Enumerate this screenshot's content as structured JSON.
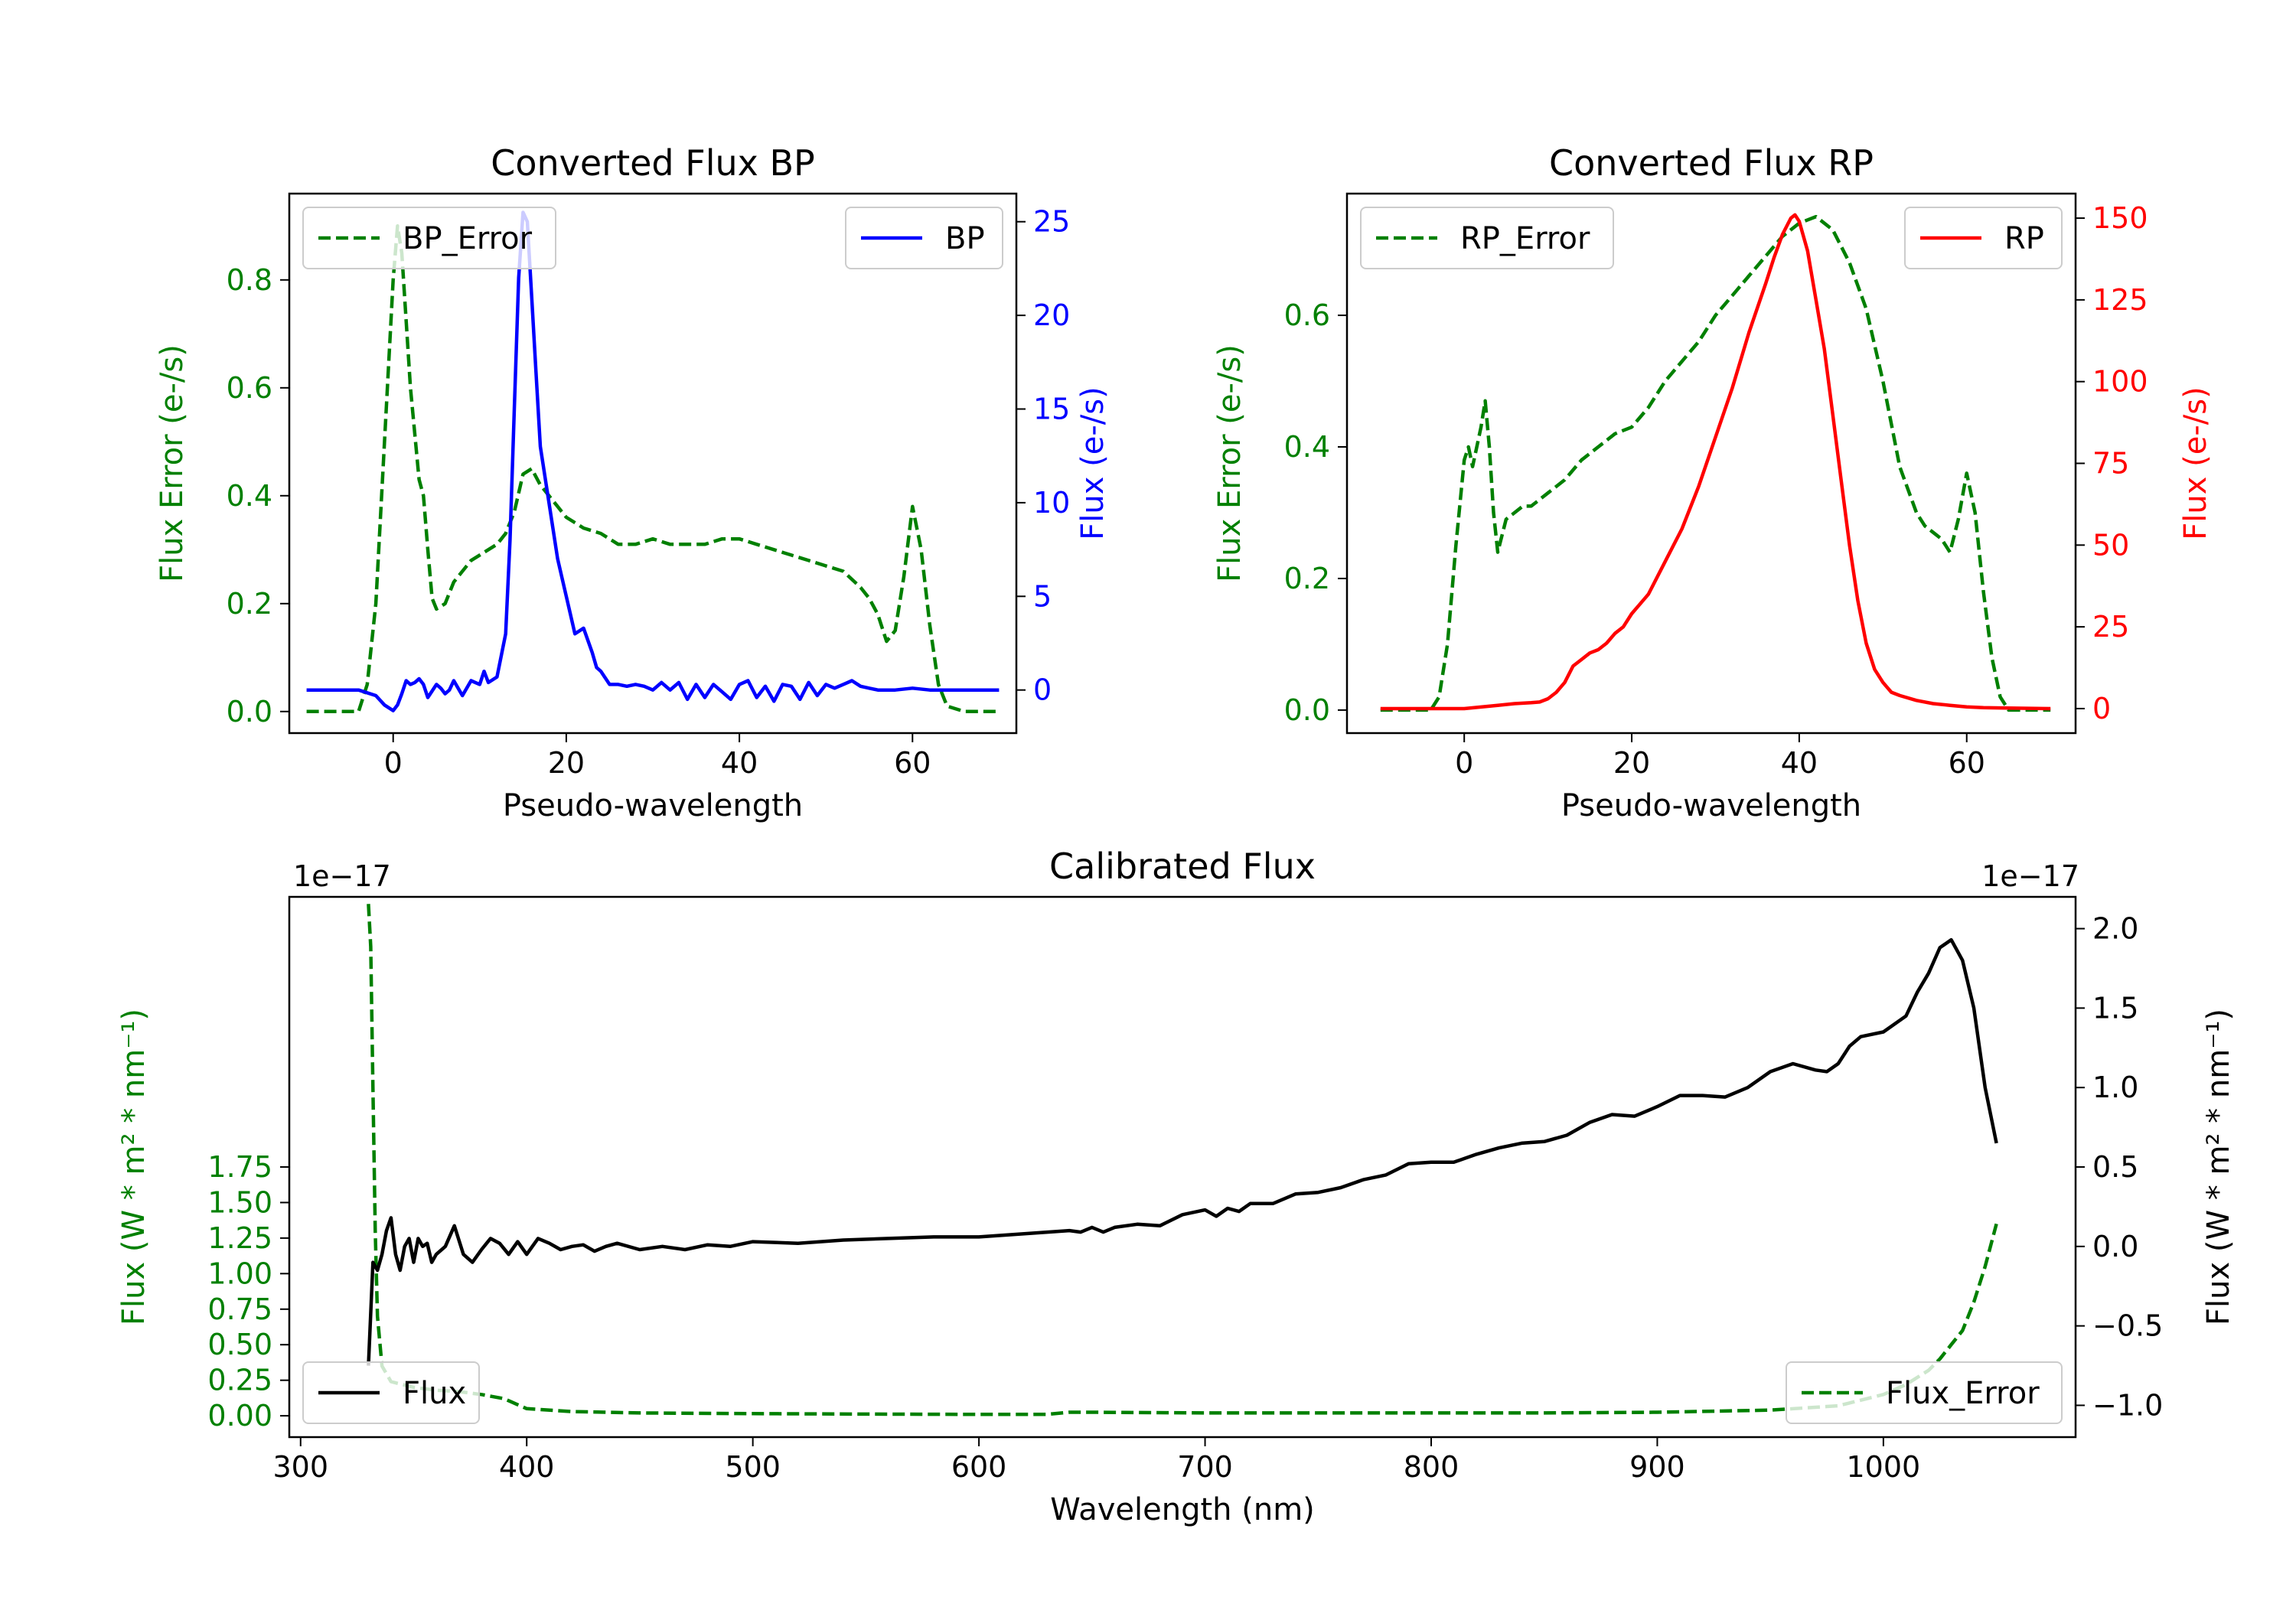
{
  "chart_data": [
    {
      "id": "bp",
      "type": "line",
      "title": "Converted Flux BP",
      "xlabel": "Pseudo-wavelength",
      "xlim": [
        -12,
        72
      ],
      "xticks": [
        0,
        20,
        40,
        60
      ],
      "left_axis": {
        "label": "Flux Error (e-/s)",
        "color": "#008000",
        "ylim": [
          -0.04,
          0.96
        ],
        "ticks": [
          0.0,
          0.2,
          0.4,
          0.6,
          0.8
        ],
        "tick_labels": [
          "0.0",
          "0.2",
          "0.4",
          "0.6",
          "0.8"
        ]
      },
      "right_axis": {
        "label": "Flux (e-/s)",
        "color": "#0000ff",
        "ylim": [
          -2.3,
          26.5
        ],
        "ticks": [
          0,
          5,
          10,
          15,
          20,
          25
        ],
        "tick_labels": [
          "0",
          "5",
          "10",
          "15",
          "20",
          "25"
        ]
      },
      "series": [
        {
          "name": "BP_Error",
          "axis": "left",
          "style": "dashed",
          "color": "#008000",
          "x": [
            -10,
            -4,
            -3,
            -2,
            -1,
            0,
            0.5,
            1,
            2,
            3,
            3.5,
            4,
            4.5,
            5,
            6,
            7,
            8,
            9,
            10,
            11,
            12,
            13,
            14,
            15,
            16,
            17,
            18,
            19,
            20,
            21,
            22,
            24,
            26,
            28,
            30,
            32,
            34,
            36,
            38,
            40,
            42,
            44,
            46,
            48,
            50,
            52,
            54,
            55,
            56,
            57,
            58,
            59,
            60,
            61,
            62,
            63,
            64,
            66,
            68,
            70
          ],
          "values": [
            0.0,
            0.0,
            0.05,
            0.2,
            0.5,
            0.8,
            0.9,
            0.85,
            0.6,
            0.43,
            0.4,
            0.3,
            0.21,
            0.19,
            0.2,
            0.24,
            0.26,
            0.28,
            0.29,
            0.3,
            0.31,
            0.33,
            0.37,
            0.44,
            0.45,
            0.42,
            0.4,
            0.38,
            0.36,
            0.35,
            0.34,
            0.33,
            0.31,
            0.31,
            0.32,
            0.31,
            0.31,
            0.31,
            0.32,
            0.32,
            0.31,
            0.3,
            0.29,
            0.28,
            0.27,
            0.26,
            0.23,
            0.21,
            0.18,
            0.13,
            0.15,
            0.25,
            0.38,
            0.3,
            0.16,
            0.05,
            0.01,
            0.0,
            0.0,
            0.0
          ]
        },
        {
          "name": "BP",
          "axis": "right",
          "style": "solid",
          "color": "#0000ff",
          "x": [
            -10,
            -4,
            -2,
            -1,
            0,
            0.5,
            1,
            1.5,
            2,
            2.5,
            3,
            3.5,
            4,
            5,
            5.5,
            6,
            6.5,
            7,
            8,
            9,
            10,
            10.5,
            11,
            12,
            13,
            13.5,
            14,
            14.5,
            15,
            15.5,
            16,
            16.5,
            17,
            18,
            19,
            20,
            21,
            22,
            23,
            23.5,
            24,
            25,
            26,
            27,
            28,
            29,
            30,
            31,
            32,
            33,
            34,
            35,
            36,
            37,
            38,
            39,
            40,
            41,
            42,
            43,
            44,
            45,
            46,
            47,
            48,
            49,
            50,
            51,
            52,
            53,
            54,
            55,
            56,
            58,
            60,
            62,
            64,
            66,
            70
          ],
          "values": [
            0,
            0,
            -0.3,
            -0.8,
            -1.1,
            -0.8,
            -0.2,
            0.5,
            0.3,
            0.4,
            0.6,
            0.3,
            -0.4,
            0.3,
            0.1,
            -0.2,
            0.0,
            0.5,
            -0.3,
            0.5,
            0.3,
            1.0,
            0.4,
            0.7,
            3.0,
            8.0,
            15.0,
            22.0,
            25.5,
            25.0,
            21.0,
            17.0,
            13.0,
            10.0,
            7.0,
            5.0,
            3.0,
            3.3,
            2.0,
            1.2,
            1.0,
            0.3,
            0.3,
            0.2,
            0.3,
            0.2,
            0.0,
            0.4,
            0.0,
            0.4,
            -0.5,
            0.3,
            -0.4,
            0.3,
            -0.1,
            -0.5,
            0.3,
            0.5,
            -0.4,
            0.2,
            -0.6,
            0.3,
            0.2,
            -0.5,
            0.4,
            -0.3,
            0.3,
            0.1,
            0.3,
            0.5,
            0.2,
            0.1,
            0.0,
            0.0,
            0.1,
            0.0,
            0.0,
            0.0,
            0.0
          ]
        }
      ],
      "legends": [
        {
          "entries": [
            "BP_Error"
          ],
          "position": "upper left"
        },
        {
          "entries": [
            "BP"
          ],
          "position": "upper right"
        }
      ]
    },
    {
      "id": "rp",
      "type": "line",
      "title": "Converted Flux RP",
      "xlabel": "Pseudo-wavelength",
      "xlim": [
        -14,
        73
      ],
      "xticks": [
        0,
        20,
        40,
        60
      ],
      "left_axis": {
        "label": "Flux Error (e-/s)",
        "color": "#008000",
        "ylim": [
          -0.035,
          0.785
        ],
        "ticks": [
          0.0,
          0.2,
          0.4,
          0.6
        ],
        "tick_labels": [
          "0.0",
          "0.2",
          "0.4",
          "0.6"
        ]
      },
      "right_axis": {
        "label": "Flux (e-/s)",
        "color": "#ff0000",
        "ylim": [
          -7.5,
          157.5
        ],
        "ticks": [
          0,
          25,
          50,
          75,
          100,
          125,
          150
        ],
        "tick_labels": [
          "0",
          "25",
          "50",
          "75",
          "100",
          "125",
          "150"
        ]
      },
      "series": [
        {
          "name": "RP_Error",
          "axis": "left",
          "style": "dashed",
          "color": "#008000",
          "x": [
            -10,
            -4,
            -3,
            -2,
            -1,
            0,
            0.5,
            1,
            1.5,
            2,
            2.5,
            3,
            3.5,
            4,
            5,
            6,
            7,
            8,
            9,
            10,
            11,
            12,
            14,
            16,
            18,
            20,
            22,
            24,
            26,
            28,
            30,
            32,
            34,
            36,
            38,
            40,
            42,
            44,
            46,
            48,
            50,
            52,
            54,
            55,
            56,
            57,
            58,
            59,
            60,
            61,
            62,
            63,
            64,
            65,
            66,
            70
          ],
          "values": [
            0.0,
            0.0,
            0.02,
            0.1,
            0.25,
            0.38,
            0.4,
            0.37,
            0.4,
            0.43,
            0.47,
            0.4,
            0.3,
            0.24,
            0.29,
            0.3,
            0.31,
            0.31,
            0.32,
            0.33,
            0.34,
            0.35,
            0.38,
            0.4,
            0.42,
            0.43,
            0.46,
            0.5,
            0.53,
            0.56,
            0.6,
            0.63,
            0.66,
            0.69,
            0.72,
            0.74,
            0.75,
            0.73,
            0.68,
            0.61,
            0.5,
            0.37,
            0.3,
            0.28,
            0.27,
            0.26,
            0.24,
            0.29,
            0.36,
            0.3,
            0.18,
            0.08,
            0.02,
            0.0,
            0.0,
            0.0
          ]
        },
        {
          "name": "RP",
          "axis": "right",
          "style": "solid",
          "color": "#ff0000",
          "x": [
            -10,
            0,
            4,
            6,
            8,
            9,
            10,
            11,
            12,
            13,
            14,
            15,
            16,
            17,
            18,
            19,
            20,
            21,
            22,
            24,
            26,
            28,
            30,
            32,
            34,
            36,
            37,
            38,
            39,
            39.5,
            40,
            41,
            42,
            43,
            44,
            45,
            46,
            47,
            48,
            49,
            50,
            51,
            52,
            54,
            56,
            58,
            60,
            62,
            64,
            70
          ],
          "values": [
            0,
            0,
            1,
            1.5,
            1.8,
            2,
            3,
            5,
            8,
            13,
            15,
            17,
            18,
            20,
            23,
            25,
            29,
            32,
            35,
            45,
            55,
            68,
            83,
            98,
            115,
            130,
            138,
            145,
            150,
            151,
            149,
            140,
            125,
            110,
            90,
            70,
            50,
            33,
            20,
            12,
            8,
            5,
            4,
            2.5,
            1.5,
            1,
            0.5,
            0.3,
            0.2,
            0
          ]
        }
      ],
      "legends": [
        {
          "entries": [
            "RP_Error"
          ],
          "position": "upper left"
        },
        {
          "entries": [
            "RP"
          ],
          "position": "upper right"
        }
      ]
    },
    {
      "id": "cal",
      "type": "line",
      "title": "Calibrated Flux",
      "xlabel": "Wavelength (nm)",
      "xlim": [
        295,
        1085
      ],
      "xticks": [
        300,
        400,
        500,
        600,
        700,
        800,
        900,
        1000
      ],
      "left_axis": {
        "label": "Flux (W * m² * nm⁻¹)",
        "color": "#008000",
        "offset_text": "1e−17",
        "ylim": [
          -0.15,
          3.65
        ],
        "ticks": [
          0.0,
          0.25,
          0.5,
          0.75,
          1.0,
          1.25,
          1.5,
          1.75
        ],
        "tick_labels": [
          "0.00",
          "0.25",
          "0.50",
          "0.75",
          "1.00",
          "1.25",
          "1.50",
          "1.75"
        ]
      },
      "right_axis": {
        "label": "Flux (W * m² * nm⁻¹)",
        "color": "#000000",
        "offset_text": "1e−17",
        "ylim": [
          -1.2,
          2.2
        ],
        "ticks": [
          -1.0,
          -0.5,
          0.0,
          0.5,
          1.0,
          1.5,
          2.0
        ],
        "tick_labels": [
          "−1.0",
          "−0.5",
          "0.0",
          "0.5",
          "1.0",
          "1.5",
          "2.0"
        ]
      },
      "series": [
        {
          "name": "Flux_Error",
          "axis": "left",
          "style": "dashed",
          "color": "#008000",
          "x": [
            330,
            331,
            332,
            333,
            334,
            336,
            340,
            350,
            360,
            370,
            380,
            390,
            400,
            420,
            450,
            500,
            550,
            600,
            630,
            640,
            650,
            700,
            750,
            800,
            850,
            900,
            950,
            980,
            1000,
            1010,
            1020,
            1025,
            1030,
            1035,
            1040,
            1045,
            1050
          ],
          "values": [
            3.6,
            3.3,
            2.3,
            1.3,
            0.7,
            0.35,
            0.24,
            0.2,
            0.18,
            0.17,
            0.15,
            0.12,
            0.05,
            0.03,
            0.02,
            0.015,
            0.012,
            0.01,
            0.01,
            0.025,
            0.025,
            0.02,
            0.02,
            0.02,
            0.02,
            0.025,
            0.04,
            0.07,
            0.15,
            0.22,
            0.32,
            0.4,
            0.5,
            0.6,
            0.8,
            1.05,
            1.35
          ]
        },
        {
          "name": "Flux",
          "axis": "right",
          "style": "solid",
          "color": "#000000",
          "x": [
            330,
            332,
            334,
            336,
            338,
            340,
            342,
            344,
            346,
            348,
            350,
            352,
            354,
            356,
            358,
            360,
            364,
            368,
            372,
            376,
            380,
            384,
            388,
            392,
            396,
            400,
            405,
            410,
            415,
            420,
            425,
            430,
            435,
            440,
            450,
            460,
            470,
            480,
            490,
            500,
            520,
            540,
            560,
            580,
            600,
            620,
            640,
            645,
            650,
            655,
            660,
            670,
            680,
            690,
            700,
            705,
            710,
            715,
            720,
            730,
            740,
            750,
            760,
            770,
            780,
            790,
            800,
            810,
            820,
            830,
            840,
            850,
            860,
            870,
            880,
            890,
            900,
            910,
            920,
            930,
            940,
            950,
            960,
            970,
            975,
            980,
            985,
            990,
            1000,
            1010,
            1015,
            1020,
            1025,
            1030,
            1035,
            1040,
            1045,
            1050
          ],
          "values": [
            -0.75,
            -0.1,
            -0.15,
            -0.05,
            0.1,
            0.18,
            -0.05,
            -0.15,
            0.0,
            0.05,
            -0.1,
            0.05,
            0.0,
            0.02,
            -0.1,
            -0.05,
            0.0,
            0.13,
            -0.05,
            -0.1,
            -0.02,
            0.05,
            0.02,
            -0.05,
            0.03,
            -0.05,
            0.05,
            0.02,
            -0.02,
            0.0,
            0.01,
            -0.03,
            0.0,
            0.02,
            -0.02,
            0.0,
            -0.02,
            0.01,
            0.0,
            0.03,
            0.02,
            0.04,
            0.05,
            0.06,
            0.06,
            0.08,
            0.1,
            0.09,
            0.12,
            0.09,
            0.12,
            0.14,
            0.13,
            0.2,
            0.23,
            0.19,
            0.24,
            0.22,
            0.27,
            0.27,
            0.33,
            0.34,
            0.37,
            0.42,
            0.45,
            0.52,
            0.53,
            0.53,
            0.58,
            0.62,
            0.65,
            0.66,
            0.7,
            0.78,
            0.83,
            0.82,
            0.88,
            0.95,
            0.95,
            0.94,
            1.0,
            1.1,
            1.15,
            1.11,
            1.1,
            1.15,
            1.26,
            1.32,
            1.35,
            1.45,
            1.6,
            1.72,
            1.88,
            1.93,
            1.8,
            1.5,
            1.0,
            0.65
          ]
        }
      ],
      "legends": [
        {
          "entries": [
            "Flux"
          ],
          "position": "lower left"
        },
        {
          "entries": [
            "Flux_Error"
          ],
          "position": "lower right"
        }
      ]
    }
  ]
}
